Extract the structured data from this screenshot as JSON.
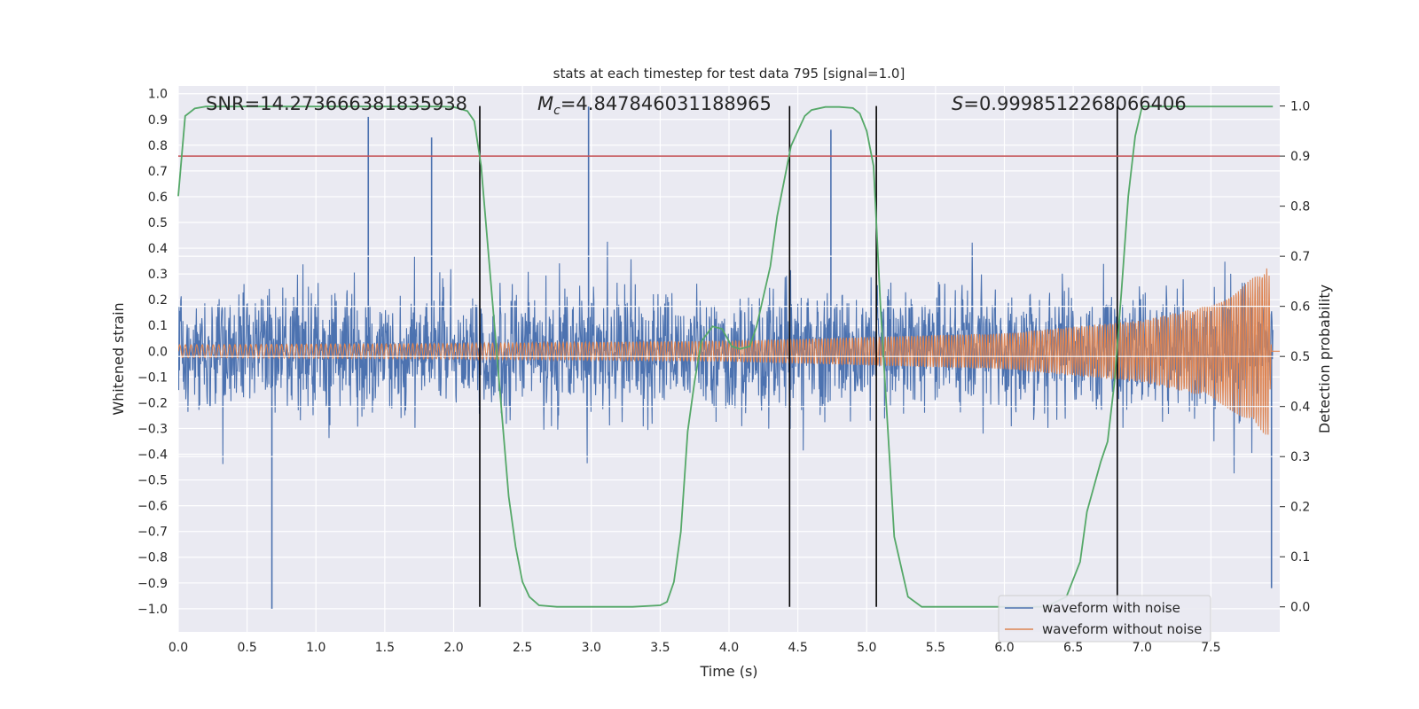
{
  "chart_data": {
    "type": "line",
    "title": "stats at each timestep for test data 795 [signal=1.0]",
    "xlabel": "Time (s)",
    "ylabel_left": "Whitened strain",
    "ylabel_right": "Detection probability",
    "xlim": [
      0.0,
      8.0
    ],
    "ylim_left": [
      -1.09,
      1.03
    ],
    "ylim_right": [
      -0.05,
      1.04
    ],
    "x_ticks": [
      "0.0",
      "0.5",
      "1.0",
      "1.5",
      "2.0",
      "2.5",
      "3.0",
      "3.5",
      "4.0",
      "4.5",
      "5.0",
      "5.5",
      "6.0",
      "6.5",
      "7.0",
      "7.5"
    ],
    "y_left_ticks": [
      "1.0",
      "0.9",
      "0.8",
      "0.7",
      "0.6",
      "0.5",
      "0.4",
      "0.3",
      "0.2",
      "0.1",
      "0.0",
      "−0.1",
      "−0.2",
      "−0.3",
      "−0.4",
      "−0.5",
      "−0.6",
      "−0.7",
      "−0.8",
      "−0.9",
      "−1.0"
    ],
    "y_right_ticks": [
      "1.0",
      "0.9",
      "0.8",
      "0.7",
      "0.6",
      "0.5",
      "0.4",
      "0.3",
      "0.2",
      "0.1",
      "0.0"
    ],
    "annotations": {
      "snr": "SNR=14.273666381835938",
      "mc_symbol": "M",
      "mc_sub": "c",
      "mc_value": "=4.847846031188965",
      "s_symbol": "S",
      "s_value": "=0.9998512268066406"
    },
    "legend": {
      "placement": "lower-right",
      "entries": [
        "waveform with noise",
        "waveform without noise"
      ]
    },
    "threshold_right": 0.9,
    "vertical_lines_x": [
      2.19,
      4.44,
      5.07,
      6.82
    ],
    "noise_envelope": {
      "t": [
        0.0,
        7.95
      ],
      "typical_amplitude": 0.4,
      "max_peaks": [
        [
          0.68,
          -1.0
        ],
        [
          1.38,
          0.91
        ],
        [
          1.84,
          0.83
        ],
        [
          2.98,
          0.95
        ],
        [
          4.74,
          0.86
        ],
        [
          7.94,
          -0.92
        ]
      ]
    },
    "clean_waveform": {
      "amplitude_points": [
        [
          0.0,
          0.025
        ],
        [
          2.0,
          0.03
        ],
        [
          4.0,
          0.04
        ],
        [
          6.0,
          0.07
        ],
        [
          7.0,
          0.12
        ],
        [
          7.5,
          0.18
        ],
        [
          7.85,
          0.3
        ],
        [
          7.92,
          0.34
        ],
        [
          7.94,
          0.0
        ]
      ]
    },
    "series": [
      {
        "name": "detection probability",
        "axis": "right",
        "color": "#55a868",
        "x": [
          0.0,
          0.05,
          0.12,
          0.2,
          0.5,
          1.0,
          1.5,
          1.9,
          2.0,
          2.1,
          2.15,
          2.2,
          2.3,
          2.4,
          2.45,
          2.5,
          2.55,
          2.62,
          2.75,
          3.0,
          3.3,
          3.5,
          3.55,
          3.6,
          3.65,
          3.7,
          3.75,
          3.8,
          3.88,
          3.95,
          4.02,
          4.08,
          4.15,
          4.2,
          4.3,
          4.35,
          4.4,
          4.45,
          4.5,
          4.55,
          4.6,
          4.7,
          4.8,
          4.9,
          4.95,
          5.0,
          5.05,
          5.1,
          5.2,
          5.3,
          5.4,
          5.6,
          6.0,
          6.3,
          6.45,
          6.55,
          6.6,
          6.7,
          6.75,
          6.8,
          6.85,
          6.9,
          6.95,
          7.0,
          7.3,
          7.95
        ],
        "y": [
          0.82,
          0.98,
          0.995,
          0.999,
          0.999,
          0.999,
          0.999,
          0.999,
          0.998,
          0.99,
          0.97,
          0.88,
          0.55,
          0.22,
          0.12,
          0.05,
          0.02,
          0.003,
          0.0,
          0.0,
          0.0,
          0.003,
          0.01,
          0.05,
          0.15,
          0.35,
          0.45,
          0.53,
          0.56,
          0.555,
          0.52,
          0.515,
          0.52,
          0.56,
          0.68,
          0.78,
          0.85,
          0.92,
          0.95,
          0.98,
          0.992,
          0.998,
          0.998,
          0.996,
          0.985,
          0.95,
          0.88,
          0.6,
          0.14,
          0.02,
          0.0,
          0.0,
          0.0,
          0.0,
          0.02,
          0.09,
          0.19,
          0.29,
          0.33,
          0.45,
          0.63,
          0.82,
          0.94,
          0.999,
          0.999,
          0.999
        ]
      },
      {
        "name": "waveform with noise",
        "axis": "left",
        "color": "#4c72b0"
      },
      {
        "name": "waveform without noise",
        "axis": "left",
        "color": "#dd8452"
      }
    ]
  }
}
